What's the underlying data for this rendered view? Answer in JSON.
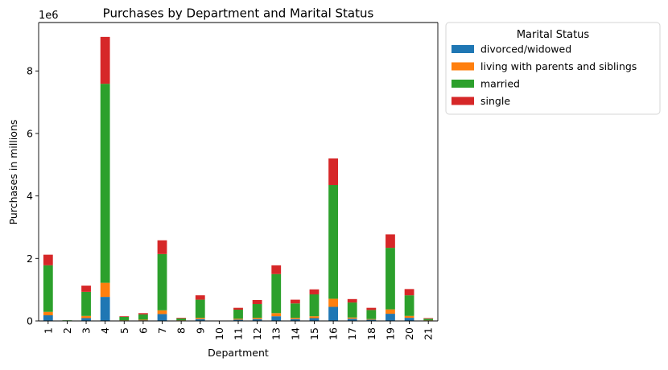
{
  "chart_data": {
    "type": "bar",
    "stacked": true,
    "title": "Purchases by Department and Marital Status",
    "xlabel": "Department",
    "ylabel": "Purchases in millions",
    "y_offset_label": "1e6",
    "ylim": [
      0,
      9.55
    ],
    "yticks": [
      0,
      2,
      4,
      6,
      8
    ],
    "grid": false,
    "legend": {
      "title": "Marital Status",
      "placement": "outside-top-right"
    },
    "categories": [
      "1",
      "2",
      "3",
      "4",
      "5",
      "6",
      "7",
      "8",
      "9",
      "10",
      "11",
      "12",
      "13",
      "14",
      "15",
      "16",
      "17",
      "18",
      "19",
      "20",
      "21"
    ],
    "series": [
      {
        "name": "divorced/widowed",
        "color": "#1f77b4",
        "values": [
          0.18,
          0.0,
          0.09,
          0.77,
          0.01,
          0.02,
          0.22,
          0.01,
          0.06,
          0.0,
          0.04,
          0.06,
          0.15,
          0.06,
          0.09,
          0.45,
          0.07,
          0.04,
          0.23,
          0.1,
          0.01
        ]
      },
      {
        "name": "living with parents and siblings",
        "color": "#ff7f0e",
        "values": [
          0.11,
          0.0,
          0.07,
          0.45,
          0.01,
          0.02,
          0.12,
          0.01,
          0.04,
          0.0,
          0.03,
          0.04,
          0.1,
          0.04,
          0.06,
          0.26,
          0.04,
          0.02,
          0.14,
          0.06,
          0.01
        ]
      },
      {
        "name": "married",
        "color": "#2ca02c",
        "values": [
          1.49,
          0.02,
          0.77,
          6.37,
          0.11,
          0.17,
          1.8,
          0.06,
          0.58,
          0.01,
          0.29,
          0.44,
          1.25,
          0.46,
          0.7,
          3.64,
          0.48,
          0.29,
          1.97,
          0.66,
          0.05
        ]
      },
      {
        "name": "single",
        "color": "#d62728",
        "values": [
          0.34,
          0.0,
          0.2,
          1.5,
          0.02,
          0.04,
          0.44,
          0.02,
          0.14,
          0.0,
          0.06,
          0.13,
          0.28,
          0.12,
          0.16,
          0.85,
          0.11,
          0.07,
          0.43,
          0.2,
          0.02
        ]
      }
    ]
  }
}
